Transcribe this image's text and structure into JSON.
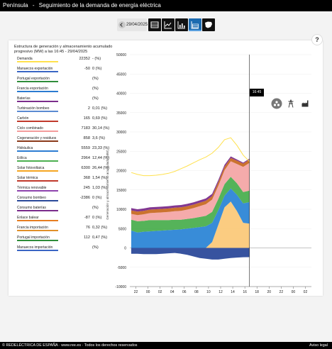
{
  "header": {
    "region": "Península",
    "separator": "-",
    "title": "Seguimiento de la demanda de energía eléctrica"
  },
  "toolbar": {
    "date": "29/04/2025",
    "views": [
      "table-icon",
      "line-chart-icon",
      "bar-chart-icon",
      "stacked-area-icon",
      "spain-map-icon"
    ],
    "active_view": 3
  },
  "card": {
    "title": "Estructura de generación y almacenamiento acumulado progresivo (MW) a las 16:45 - 29/04/2025",
    "help": "?",
    "tooltip_time": "16:45"
  },
  "legend": [
    {
      "name": "Demanda",
      "value": "22352",
      "pct": "- (%)",
      "color": "#ffe14d"
    },
    {
      "name": "Manuecos exportación",
      "value": "-50",
      "pct": "0 (%)",
      "color": "#3a66c4"
    },
    {
      "name": "Portugal exportación",
      "value": "",
      "pct": "(%)",
      "color": "#2f8d3a"
    },
    {
      "name": "Francia exportación",
      "value": "",
      "pct": "(%)",
      "color": "#2b7bd0"
    },
    {
      "name": "Baterías",
      "value": "",
      "pct": "(%)",
      "color": "#7b2d8b"
    },
    {
      "name": "Turbinación bombeo",
      "value": "2",
      "pct": "0,01 (%)",
      "color": "#5b8ad1"
    },
    {
      "name": "Carbón",
      "value": "165",
      "pct": "0,69 (%)",
      "color": "#c0392b"
    },
    {
      "name": "Ciclo combinado",
      "value": "7183",
      "pct": "30,14 (%)",
      "color": "#f39c9c"
    },
    {
      "name": "Cogeneración y residuos",
      "value": "858",
      "pct": "3,6 (%)",
      "color": "#8a3a1a"
    },
    {
      "name": "Hidráulica",
      "value": "5559",
      "pct": "23,33 (%)",
      "color": "#2d7dd2"
    },
    {
      "name": "Eólica",
      "value": "2964",
      "pct": "12,44 (%)",
      "color": "#4caf50"
    },
    {
      "name": "Solar fotovoltaica",
      "value": "6300",
      "pct": "26,44 (%)",
      "color": "#f5a623"
    },
    {
      "name": "Solar térmica",
      "value": "368",
      "pct": "1,54 (%)",
      "color": "#c0392b"
    },
    {
      "name": "Térmica renovable",
      "value": "245",
      "pct": "1,03 (%)",
      "color": "#8e44ad"
    },
    {
      "name": "Consumo bombeo",
      "value": "-2386",
      "pct": "0 (%)",
      "color": "#2c4a9a"
    },
    {
      "name": "Consumo baterías",
      "value": "",
      "pct": "(%)",
      "color": "#7b2d8b"
    },
    {
      "name": "Enlace balear",
      "value": "-87",
      "pct": "0 (%)",
      "color": "#e67e22"
    },
    {
      "name": "Francia importación",
      "value": "76",
      "pct": "0,32 (%)",
      "color": "#e0902a"
    },
    {
      "name": "Portugal importación",
      "value": "112",
      "pct": "0,47 (%)",
      "color": "#2f8d3a"
    },
    {
      "name": "Manuecos importación",
      "value": "",
      "pct": "(%)",
      "color": "#3a66c4"
    }
  ],
  "chart_data": {
    "type": "area",
    "title": "Estructura de generación y almacenamiento acumulado progresivo (MW) a las 16:45 - 29/04/2025",
    "ylabel": "Generación y almacenamiento acumulado (MW)",
    "xlabel": "",
    "ylim": [
      -10000,
      50000
    ],
    "yticks": [
      -10000,
      -5000,
      0,
      5000,
      10000,
      15000,
      20000,
      25000,
      30000,
      35000,
      40000,
      45000,
      50000
    ],
    "xtick_labels": [
      "22",
      "00",
      "02",
      "04",
      "06",
      "08",
      "10",
      "12",
      "14",
      "16",
      "18",
      "20",
      "22",
      "00",
      "02"
    ],
    "cursor_time": "16:45",
    "x": [
      0,
      1,
      2,
      3,
      4,
      5,
      6,
      7,
      8,
      9,
      10,
      11,
      12,
      13,
      14,
      15,
      16,
      17,
      18,
      19
    ],
    "series": [
      {
        "name": "Solar fotovoltaica",
        "color": "#fbc97a",
        "values": [
          0,
          0,
          0,
          0,
          0,
          0,
          0,
          0,
          0,
          0,
          0,
          0,
          0,
          1500,
          6000,
          10500,
          12000,
          9500,
          6500,
          6300
        ]
      },
      {
        "name": "Hidráulica",
        "color": "#2d86d6",
        "values": [
          4500,
          4000,
          4200,
          4300,
          4400,
          4500,
          4600,
          4700,
          4800,
          5000,
          5200,
          5400,
          5600,
          5000,
          3800,
          3000,
          3400,
          4200,
          5000,
          5559
        ]
      },
      {
        "name": "Eólica",
        "color": "#4caf50",
        "values": [
          2800,
          2900,
          2800,
          2900,
          2800,
          2700,
          2600,
          2600,
          2500,
          2500,
          2500,
          2600,
          2700,
          2800,
          2900,
          3000,
          3000,
          3000,
          2964,
          2964
        ]
      },
      {
        "name": "Ciclo combinado",
        "color": "#f4a7a7",
        "values": [
          1500,
          1600,
          1700,
          1800,
          1900,
          2000,
          2100,
          2200,
          2300,
          2400,
          2600,
          2800,
          3000,
          3200,
          3400,
          3600,
          4000,
          5000,
          6500,
          7183
        ]
      },
      {
        "name": "Cogeneración y residuos",
        "color": "#c86a24",
        "values": [
          900,
          900,
          900,
          900,
          900,
          900,
          900,
          900,
          900,
          900,
          900,
          900,
          900,
          900,
          900,
          880,
          870,
          860,
          858,
          858
        ]
      },
      {
        "name": "Térmica renovable",
        "color": "#7b2d8b",
        "values": [
          600,
          600,
          600,
          600,
          600,
          600,
          600,
          600,
          600,
          600,
          600,
          600,
          600,
          600,
          600,
          500,
          400,
          300,
          245,
          245
        ]
      },
      {
        "name": "Consumo bombeo",
        "color": "#2c4a9a",
        "values": [
          -1500,
          -1500,
          -1600,
          -1600,
          -1600,
          -1500,
          -1400,
          -1300,
          -1500,
          -1800,
          -2200,
          -2600,
          -2800,
          -3000,
          -3000,
          -2800,
          -2600,
          -2500,
          -2400,
          -2386
        ]
      }
    ],
    "demand_line": {
      "name": "Demanda",
      "color": "#ffe14d",
      "values": [
        19500,
        19000,
        18700,
        18700,
        18800,
        19000,
        19300,
        19800,
        20500,
        21200,
        22000,
        22800,
        23500,
        24500,
        26000,
        28000,
        28500,
        26500,
        24000,
        22352
      ]
    }
  },
  "footer": {
    "copyright": "© REDELÉCTRICA DE ESPAÑA · www.ree.es · Todos los derechos reservados",
    "legal": "Aviso legal"
  }
}
